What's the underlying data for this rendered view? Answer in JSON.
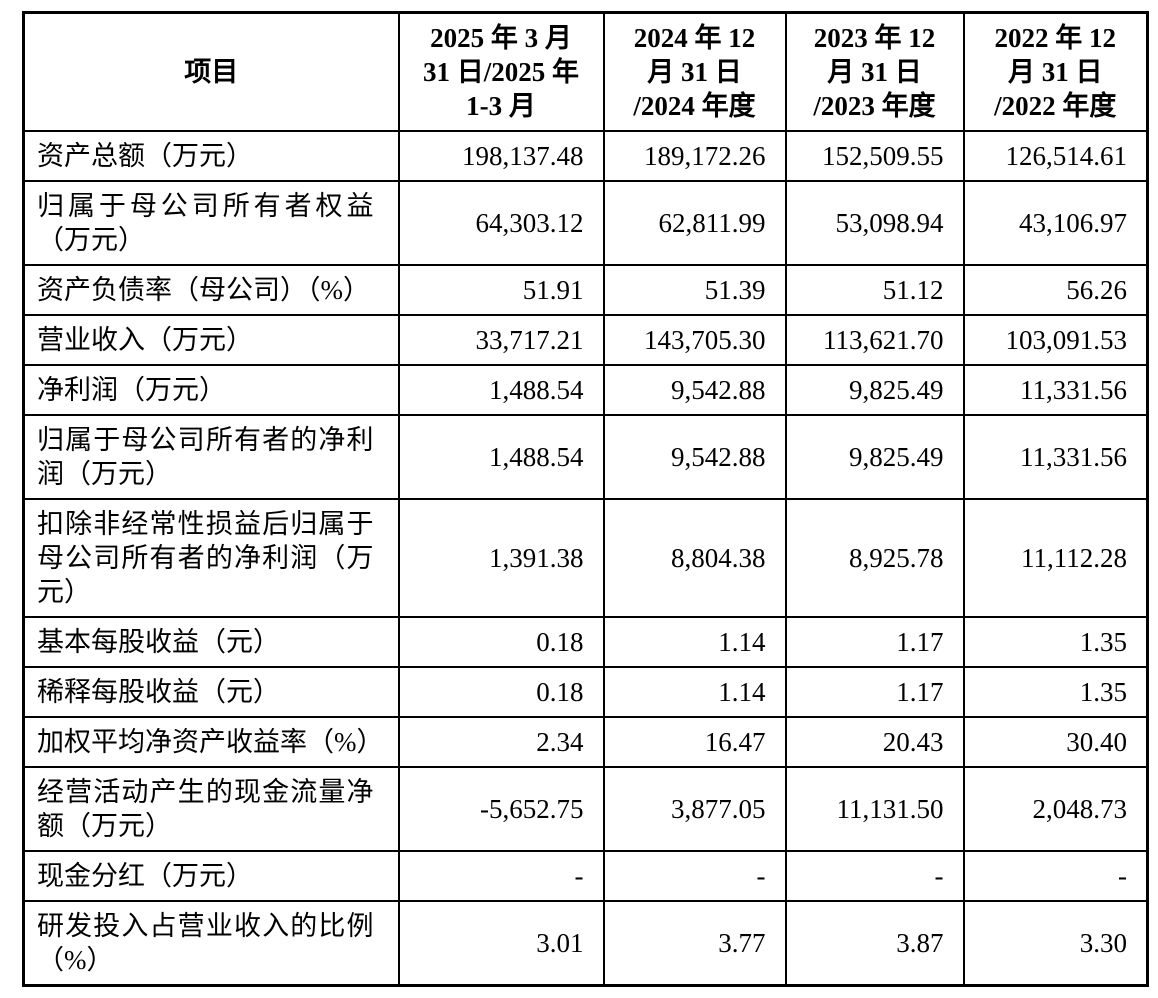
{
  "table": {
    "header": {
      "item_label": "项目",
      "periods": [
        "2025 年 3 月\n31 日/2025 年\n1-3 月",
        "2024 年 12\n月 31 日\n/2024 年度",
        "2023 年 12\n月 31 日\n/2023 年度",
        "2022 年 12\n月 31 日\n/2022 年度"
      ]
    },
    "rows": [
      {
        "label": "资产总额（万元）",
        "values": [
          "198,137.48",
          "189,172.26",
          "152,509.55",
          "126,514.61"
        ]
      },
      {
        "label": "归属于母公司所有者权益（万元）",
        "values": [
          "64,303.12",
          "62,811.99",
          "53,098.94",
          "43,106.97"
        ]
      },
      {
        "label": "资产负债率（母公司）（%）",
        "values": [
          "51.91",
          "51.39",
          "51.12",
          "56.26"
        ]
      },
      {
        "label": "营业收入（万元）",
        "values": [
          "33,717.21",
          "143,705.30",
          "113,621.70",
          "103,091.53"
        ]
      },
      {
        "label": "净利润（万元）",
        "values": [
          "1,488.54",
          "9,542.88",
          "9,825.49",
          "11,331.56"
        ]
      },
      {
        "label": "归属于母公司所有者的净利润（万元）",
        "values": [
          "1,488.54",
          "9,542.88",
          "9,825.49",
          "11,331.56"
        ]
      },
      {
        "label": "扣除非经常性损益后归属于母公司所有者的净利润（万元）",
        "values": [
          "1,391.38",
          "8,804.38",
          "8,925.78",
          "11,112.28"
        ]
      },
      {
        "label": "基本每股收益（元）",
        "values": [
          "0.18",
          "1.14",
          "1.17",
          "1.35"
        ]
      },
      {
        "label": "稀释每股收益（元）",
        "values": [
          "0.18",
          "1.14",
          "1.17",
          "1.35"
        ]
      },
      {
        "label": "加权平均净资产收益率（%）",
        "values": [
          "2.34",
          "16.47",
          "20.43",
          "30.40"
        ]
      },
      {
        "label": "经营活动产生的现金流量净额（万元）",
        "values": [
          "-5,652.75",
          "3,877.05",
          "11,131.50",
          "2,048.73"
        ]
      },
      {
        "label": "现金分红（万元）",
        "values": [
          "-",
          "-",
          "-",
          "-"
        ]
      },
      {
        "label": "研发投入占营业收入的比例（%）",
        "values": [
          "3.01",
          "3.77",
          "3.87",
          "3.30"
        ]
      }
    ]
  }
}
